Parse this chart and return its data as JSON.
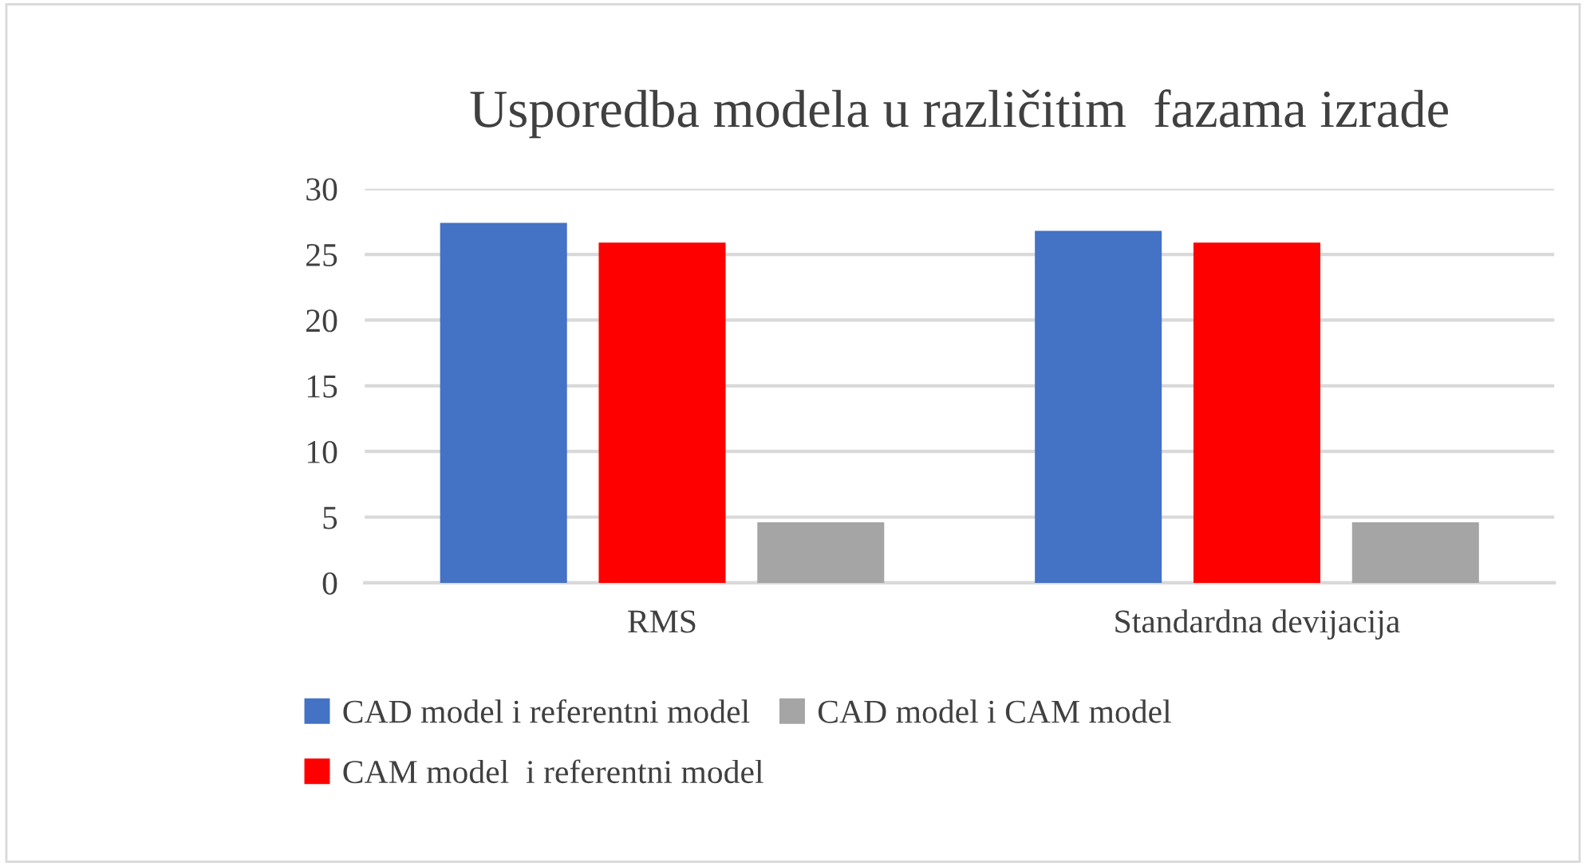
{
  "chart_data": {
    "type": "bar",
    "title": "Usporedba modela u različitim  fazama izrade",
    "categories": [
      "RMS",
      "Standardna devijacija"
    ],
    "series": [
      {
        "name": "CAD model i referentni model",
        "color": "#4472c4",
        "values": [
          27.4,
          26.8
        ]
      },
      {
        "name": "CAM model  i referentni model",
        "color": "#ff0000",
        "values": [
          25.9,
          25.9
        ]
      },
      {
        "name": "CAD model i CAM model",
        "color": "#a5a5a5",
        "values": [
          4.6,
          4.6
        ]
      }
    ],
    "ylim": [
      0,
      30
    ],
    "yticks": [
      0,
      5,
      10,
      15,
      20,
      25,
      30
    ],
    "grid": "y",
    "legend": "bottom"
  }
}
